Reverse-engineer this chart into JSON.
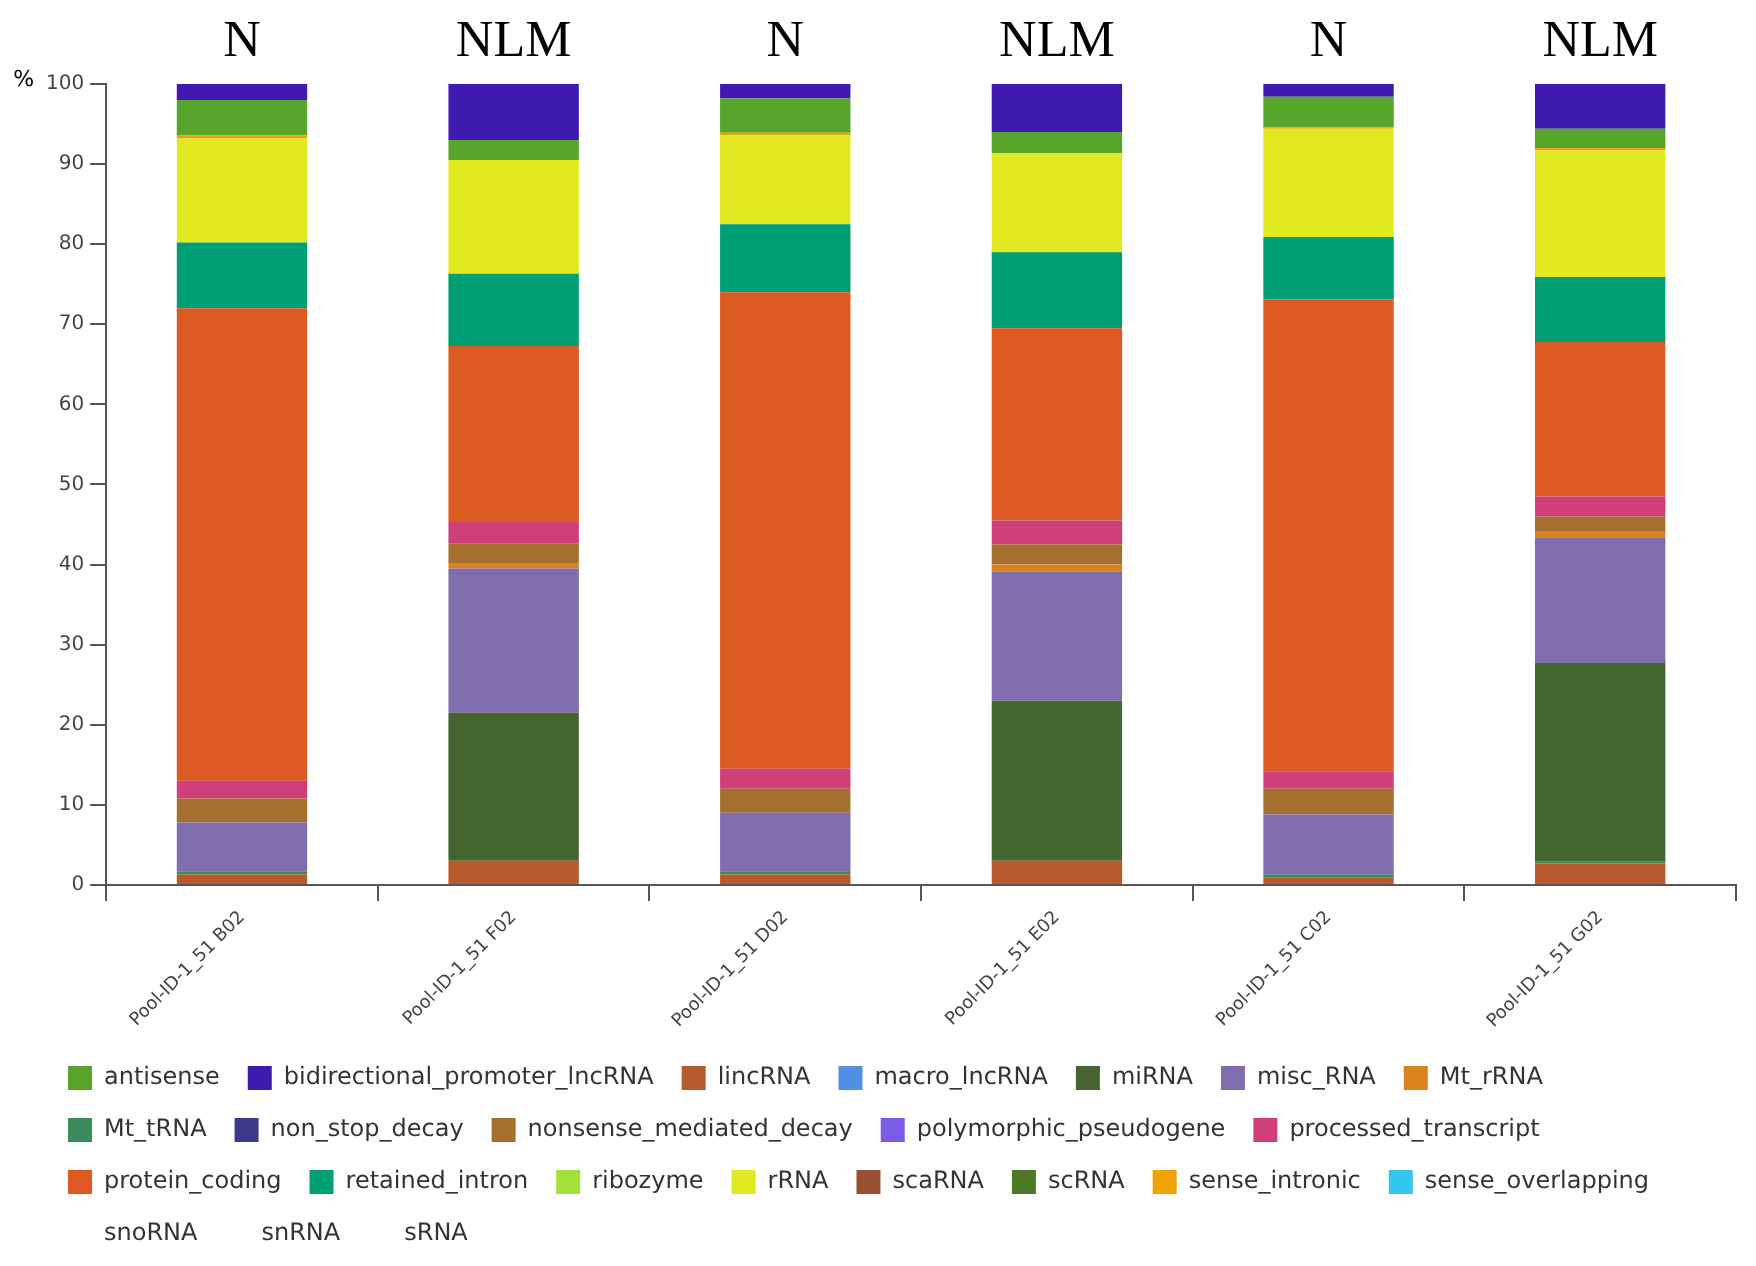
{
  "chart_data": {
    "type": "bar",
    "stacked": true,
    "ylabel": "%",
    "ylim": [
      0,
      100
    ],
    "yticks": [
      0,
      10,
      20,
      30,
      40,
      50,
      60,
      70,
      80,
      90,
      100
    ],
    "grid": false,
    "legend": "bottom",
    "categories": [
      "Pool-ID-1_51 B02",
      "Pool-ID-1_51 F02",
      "Pool-ID-1_51 D02",
      "Pool-ID-1_51 E02",
      "Pool-ID-1_51 C02",
      "Pool-ID-1_51 G02"
    ],
    "annotations": [
      "N",
      "NLM",
      "N",
      "NLM",
      "N",
      "NLM"
    ],
    "series": [
      {
        "name": "lincRNA",
        "color": "#b85a2e",
        "values": [
          1.3,
          3,
          1.3,
          3,
          0.9,
          2.7
        ]
      },
      {
        "name": "Mt_tRNA",
        "color": "#3a8a5a",
        "values": [
          0.4,
          0,
          0.4,
          0,
          0.4,
          0.2
        ]
      },
      {
        "name": "miRNA",
        "color": "#44652e",
        "values": [
          0,
          18.5,
          0,
          20,
          0,
          24.8
        ]
      },
      {
        "name": "misc_RNA",
        "color": "#806dae",
        "values": [
          6.1,
          18,
          7.3,
          16.1,
          7.5,
          15.7
        ]
      },
      {
        "name": "Mt_rRNA",
        "color": "#d9821e",
        "values": [
          0,
          0.7,
          0,
          0.9,
          0,
          0.8
        ]
      },
      {
        "name": "nonsense_mediated_decay",
        "color": "#a5702f",
        "values": [
          3,
          2.4,
          3,
          2.5,
          3.2,
          1.8
        ]
      },
      {
        "name": "processed_transcript",
        "color": "#cf3f7a",
        "values": [
          2.2,
          2.7,
          2.5,
          3,
          2.2,
          2.5
        ]
      },
      {
        "name": "protein_coding",
        "color": "#dc5a22",
        "values": [
          59,
          22,
          59.5,
          24,
          58.9,
          19.3
        ]
      },
      {
        "name": "retained_intron",
        "color": "#009e73",
        "values": [
          8.2,
          9,
          8.5,
          9.5,
          7.8,
          8.1
        ]
      },
      {
        "name": "rRNA",
        "color": "#e1e920",
        "values": [
          13,
          14.2,
          11.1,
          12.4,
          13.5,
          15.8
        ]
      },
      {
        "name": "sense_intronic",
        "color": "#efa300",
        "values": [
          0.4,
          0,
          0.3,
          0,
          0.2,
          0.3
        ]
      },
      {
        "name": "antisense",
        "color": "#57a52a",
        "values": [
          4.4,
          2.5,
          4.3,
          2.6,
          3.8,
          2.4
        ]
      },
      {
        "name": "bidirectional_promoter_lncRNA",
        "color": "#3e1ab0",
        "values": [
          2,
          7,
          1.8,
          6,
          1.6,
          5.6
        ]
      },
      {
        "name": "macro_lncRNA",
        "color": "#4f8fe6",
        "values": [
          0,
          0,
          0,
          0,
          0,
          0
        ]
      },
      {
        "name": "non_stop_decay",
        "color": "#3b3a8a",
        "values": [
          0,
          0,
          0,
          0,
          0,
          0
        ]
      },
      {
        "name": "polymorphic_pseudogene",
        "color": "#7a5ce6",
        "values": [
          0,
          0,
          0,
          0,
          0,
          0
        ]
      },
      {
        "name": "ribozyme",
        "color": "#a3e03a",
        "values": [
          0,
          0,
          0,
          0,
          0,
          0
        ]
      },
      {
        "name": "scaRNA",
        "color": "#9a5030",
        "values": [
          0,
          0,
          0,
          0,
          0,
          0
        ]
      },
      {
        "name": "scRNA",
        "color": "#4f7a25",
        "values": [
          0,
          0,
          0,
          0,
          0,
          0
        ]
      },
      {
        "name": "sense_overlapping",
        "color": "#33c7ef",
        "values": [
          0,
          0,
          0,
          0,
          0,
          0
        ]
      },
      {
        "name": "snoRNA",
        "color": null,
        "values": [
          0,
          0,
          0,
          0,
          0,
          0
        ]
      },
      {
        "name": "snRNA",
        "color": null,
        "values": [
          0,
          0,
          0,
          0,
          0,
          0
        ]
      },
      {
        "name": "sRNA",
        "color": null,
        "values": [
          0,
          0,
          0,
          0,
          0,
          0
        ]
      }
    ]
  }
}
